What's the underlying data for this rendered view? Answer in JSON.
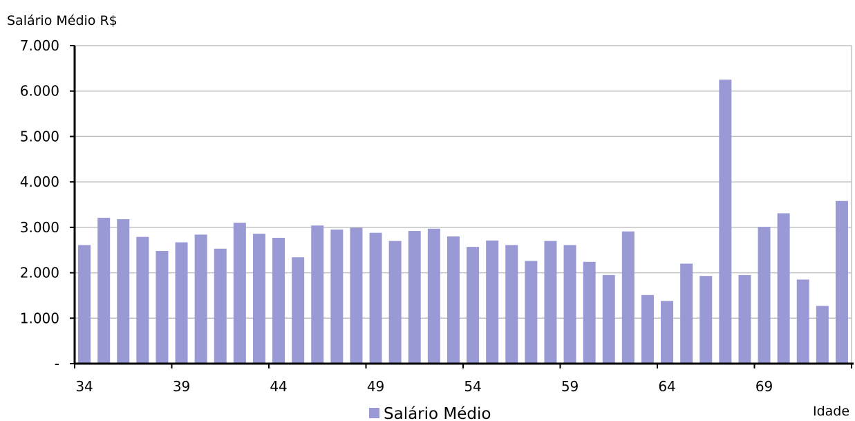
{
  "chart_data": {
    "type": "bar",
    "ylabel": "Salário Médio R$",
    "xlabel": "Idade",
    "categories": [
      34,
      35,
      36,
      37,
      38,
      39,
      40,
      41,
      42,
      43,
      44,
      45,
      46,
      47,
      48,
      49,
      50,
      51,
      52,
      53,
      54,
      55,
      56,
      57,
      58,
      59,
      60,
      61,
      62,
      63,
      64,
      65,
      66,
      67,
      68,
      69,
      70,
      71,
      72,
      73
    ],
    "x_tick_labels": [
      "34",
      "39",
      "44",
      "49",
      "54",
      "59",
      "64",
      "69"
    ],
    "y_tick_labels": [
      "-",
      "1.000",
      "2.000",
      "3.000",
      "4.000",
      "5.000",
      "6.000",
      "7.000"
    ],
    "ylim": [
      0,
      7000
    ],
    "y_ticks": [
      0,
      1000,
      2000,
      3000,
      4000,
      5000,
      6000,
      7000
    ],
    "grid": true,
    "legend_position": "bottom-center",
    "colors": {
      "bar": "#9999D6",
      "grid": "#C0C0C0",
      "axis": "#000000"
    },
    "series": [
      {
        "name": "Salário Médio",
        "values": [
          2610,
          3210,
          3180,
          2790,
          2480,
          2670,
          2840,
          2530,
          3100,
          2860,
          2770,
          2340,
          3040,
          2950,
          2990,
          2880,
          2700,
          2920,
          2970,
          2800,
          2570,
          2710,
          2610,
          2260,
          2700,
          2610,
          2240,
          1950,
          2910,
          1510,
          1380,
          2200,
          1930,
          6250,
          1950,
          3010,
          3310,
          1850,
          1270,
          3580
        ]
      }
    ]
  }
}
